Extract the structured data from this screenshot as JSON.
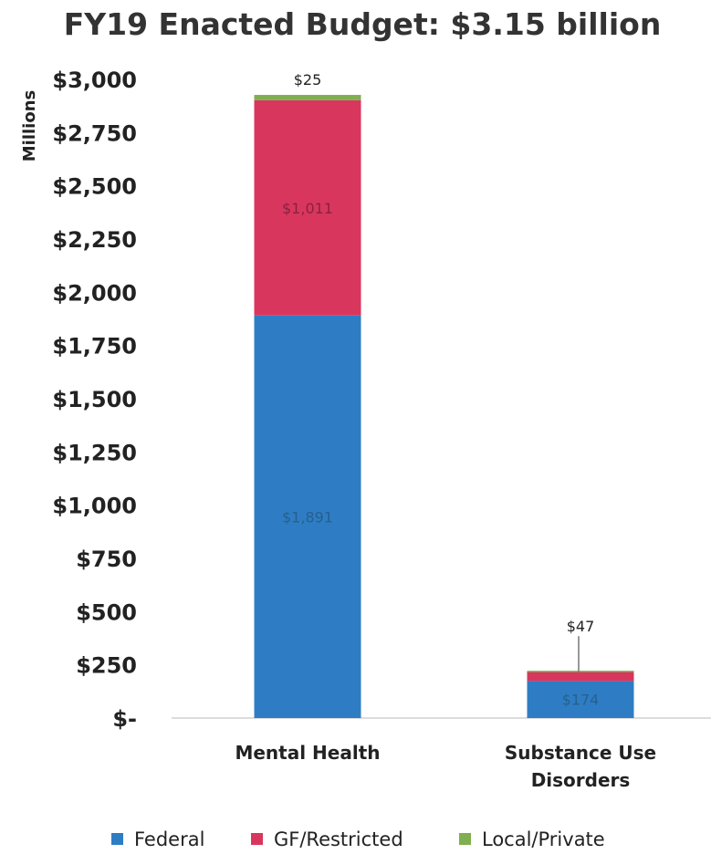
{
  "chart_data": {
    "type": "bar",
    "stacked": true,
    "title": "FY19 Enacted Budget: $3.15 billion",
    "ylabel": "Millions",
    "ylim": [
      0,
      3000
    ],
    "yticks": [
      0,
      250,
      500,
      750,
      1000,
      1250,
      1500,
      1750,
      2000,
      2250,
      2500,
      2750,
      3000
    ],
    "ytick_labels": [
      "$-",
      "$250",
      "$500",
      "$750",
      "$1,000",
      "$1,250",
      "$1,500",
      "$1,750",
      "$2,000",
      "$2,250",
      "$2,500",
      "$2,750",
      "$3,000"
    ],
    "categories": [
      "Mental Health",
      "Substance Use Disorders"
    ],
    "category_lines": [
      [
        "Mental Health"
      ],
      [
        "Substance Use",
        "Disorders"
      ]
    ],
    "series": [
      {
        "name": "Federal",
        "color": "#2E7DC4",
        "values": [
          1891,
          174
        ],
        "labels": [
          "$1,891",
          "$174"
        ]
      },
      {
        "name": "GF/Restricted",
        "color": "#D9365E",
        "values": [
          1011,
          47
        ],
        "labels": [
          "$1,011",
          "$47"
        ]
      },
      {
        "name": "Local/Private",
        "color": "#7FAF4E",
        "values": [
          25,
          1
        ],
        "labels": [
          "$25",
          ""
        ]
      }
    ],
    "grid": false,
    "legend_position": "bottom"
  }
}
